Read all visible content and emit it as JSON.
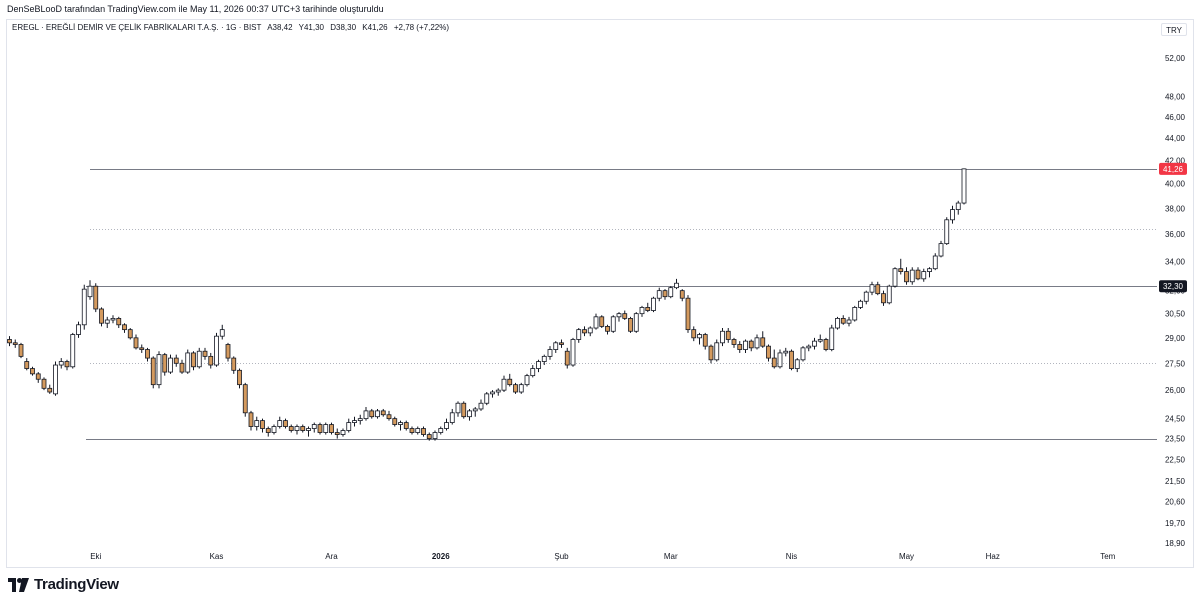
{
  "header": {
    "credit": "DenSeBLooD tarafından TradingView.com ile May 11, 2026 00:37 UTC+3 tarihinde oluşturuldu",
    "symbol": "EREGL · EREĞLİ DEMİR VE ÇELİK FABRİKALARI T.A.Ş. · 1G · BIST",
    "open": "A38,42",
    "high": "Y41,30",
    "low": "D38,30",
    "close": "K41,26",
    "change": "+2,78 (+7,22%)",
    "currency": "TRY"
  },
  "branding": {
    "name": "TradingView",
    "logo_icon": "tradingview-logo-icon"
  },
  "colors": {
    "up_body": "#ffffff",
    "down_body": "#d49a5e",
    "wick": "#131722",
    "badge": "#f23645",
    "badge_dark": "#131722"
  },
  "chart_data": {
    "type": "candlestick",
    "scale": "log",
    "y_ticks": [
      "52,00",
      "48,00",
      "46,00",
      "44,00",
      "42,00",
      "40,00",
      "38,00",
      "36,00",
      "34,00",
      "32,00",
      "30,50",
      "29,00",
      "27,50",
      "26,00",
      "24,50",
      "23,50",
      "22,50",
      "21,50",
      "20,60",
      "19,70",
      "18,90"
    ],
    "y_tick_values": [
      52,
      48,
      46,
      44,
      42,
      40,
      38,
      36,
      34,
      32,
      30.5,
      29,
      27.5,
      26,
      24.5,
      23.5,
      22.5,
      21.5,
      20.6,
      19.7,
      18.9
    ],
    "x_labels": [
      {
        "label": "Eki",
        "index": 15
      },
      {
        "label": "Kas",
        "index": 36
      },
      {
        "label": "Ara",
        "index": 56
      },
      {
        "label": "2026",
        "index": 75
      },
      {
        "label": "Şub",
        "index": 96
      },
      {
        "label": "Mar",
        "index": 115
      },
      {
        "label": "Nis",
        "index": 136
      },
      {
        "label": "May",
        "index": 156
      },
      {
        "label": "Haz",
        "index": 171
      },
      {
        "label": "Tem",
        "index": 191
      }
    ],
    "levels": [
      {
        "value": 41.26,
        "style": "solid",
        "label": "41,26",
        "badge": "red"
      },
      {
        "value": 36.4,
        "style": "dotted"
      },
      {
        "value": 32.3,
        "style": "solid",
        "label": "32,30",
        "badge": "dark"
      },
      {
        "value": 27.5,
        "style": "dotted"
      },
      {
        "value": 23.5,
        "style": "solid"
      }
    ],
    "candles": [
      [
        28.9,
        29.1,
        28.5,
        28.7
      ],
      [
        28.7,
        28.9,
        28.4,
        28.6
      ],
      [
        28.6,
        28.7,
        27.8,
        27.9
      ],
      [
        27.6,
        27.8,
        27.1,
        27.2
      ],
      [
        27.2,
        27.3,
        26.8,
        26.9
      ],
      [
        26.9,
        27.0,
        26.4,
        26.6
      ],
      [
        26.6,
        26.7,
        26.0,
        26.1
      ],
      [
        26.1,
        26.3,
        25.8,
        25.9
      ],
      [
        25.8,
        27.6,
        25.7,
        27.4
      ],
      [
        27.4,
        27.8,
        27.2,
        27.6
      ],
      [
        27.6,
        27.7,
        27.1,
        27.3
      ],
      [
        27.3,
        29.3,
        27.2,
        29.2
      ],
      [
        29.2,
        30.0,
        29.0,
        29.8
      ],
      [
        29.8,
        32.4,
        29.5,
        32.1
      ],
      [
        31.6,
        32.7,
        31.4,
        32.3
      ],
      [
        32.3,
        32.5,
        30.6,
        30.8
      ],
      [
        30.8,
        30.9,
        29.7,
        29.9
      ],
      [
        29.9,
        30.3,
        29.6,
        30.1
      ],
      [
        30.1,
        30.4,
        29.9,
        30.2
      ],
      [
        30.2,
        30.3,
        29.6,
        29.8
      ],
      [
        29.8,
        29.9,
        29.3,
        29.5
      ],
      [
        29.5,
        29.6,
        28.9,
        29.0
      ],
      [
        29.0,
        29.2,
        28.3,
        28.4
      ],
      [
        28.4,
        28.6,
        28.1,
        28.3
      ],
      [
        28.3,
        28.4,
        27.6,
        27.8
      ],
      [
        27.8,
        27.9,
        26.1,
        26.3
      ],
      [
        26.3,
        28.2,
        26.1,
        28.0
      ],
      [
        28.0,
        28.1,
        26.8,
        27.0
      ],
      [
        27.0,
        28.0,
        26.9,
        27.8
      ],
      [
        27.8,
        28.0,
        27.3,
        27.5
      ],
      [
        27.5,
        27.7,
        26.9,
        27.0
      ],
      [
        27.0,
        28.3,
        26.9,
        28.1
      ],
      [
        28.1,
        28.2,
        27.1,
        27.3
      ],
      [
        27.3,
        28.4,
        27.2,
        28.2
      ],
      [
        28.2,
        28.4,
        27.7,
        27.9
      ],
      [
        27.9,
        28.1,
        27.2,
        27.4
      ],
      [
        27.4,
        29.3,
        27.3,
        29.1
      ],
      [
        29.1,
        29.8,
        28.9,
        29.5
      ],
      [
        28.6,
        28.7,
        27.6,
        27.8
      ],
      [
        27.8,
        27.9,
        26.9,
        27.1
      ],
      [
        27.1,
        27.2,
        26.1,
        26.3
      ],
      [
        26.3,
        26.4,
        24.6,
        24.8
      ],
      [
        24.8,
        24.9,
        23.9,
        24.1
      ],
      [
        24.1,
        24.6,
        23.9,
        24.4
      ],
      [
        24.4,
        24.5,
        23.8,
        24.0
      ],
      [
        24.0,
        24.1,
        23.6,
        23.8
      ],
      [
        23.8,
        24.2,
        23.7,
        24.1
      ],
      [
        24.1,
        24.6,
        24.0,
        24.4
      ],
      [
        24.4,
        24.5,
        24.0,
        24.1
      ],
      [
        24.1,
        24.2,
        23.8,
        23.9
      ],
      [
        23.9,
        24.2,
        23.7,
        24.1
      ],
      [
        24.1,
        24.2,
        23.8,
        23.9
      ],
      [
        23.9,
        24.1,
        23.6,
        24.0
      ],
      [
        24.0,
        24.3,
        23.8,
        24.2
      ],
      [
        24.2,
        24.3,
        23.7,
        23.8
      ],
      [
        23.8,
        24.3,
        23.7,
        24.2
      ],
      [
        24.2,
        24.3,
        23.7,
        23.8
      ],
      [
        23.8,
        24.0,
        23.5,
        23.7
      ],
      [
        23.7,
        24.0,
        23.6,
        23.9
      ],
      [
        23.9,
        24.5,
        23.8,
        24.3
      ],
      [
        24.3,
        24.6,
        24.1,
        24.4
      ],
      [
        24.4,
        24.7,
        24.2,
        24.5
      ],
      [
        24.5,
        25.1,
        24.4,
        24.9
      ],
      [
        24.9,
        25.0,
        24.5,
        24.6
      ],
      [
        24.6,
        25.0,
        24.5,
        24.9
      ],
      [
        24.9,
        25.0,
        24.6,
        24.7
      ],
      [
        24.7,
        24.9,
        24.4,
        24.5
      ],
      [
        24.5,
        24.6,
        24.1,
        24.2
      ],
      [
        24.2,
        24.4,
        23.9,
        24.3
      ],
      [
        24.3,
        24.4,
        23.9,
        24.0
      ],
      [
        24.0,
        24.1,
        23.7,
        23.8
      ],
      [
        23.8,
        24.1,
        23.7,
        24.0
      ],
      [
        24.0,
        24.1,
        23.6,
        23.7
      ],
      [
        23.7,
        23.8,
        23.4,
        23.5
      ],
      [
        23.5,
        23.9,
        23.4,
        23.8
      ],
      [
        23.8,
        24.1,
        23.7,
        24.0
      ],
      [
        24.0,
        24.5,
        23.9,
        24.3
      ],
      [
        24.3,
        25.0,
        24.2,
        24.8
      ],
      [
        24.8,
        25.4,
        24.6,
        25.3
      ],
      [
        25.3,
        25.4,
        24.5,
        24.6
      ],
      [
        24.6,
        25.0,
        24.4,
        24.9
      ],
      [
        24.9,
        25.1,
        24.6,
        25.0
      ],
      [
        25.0,
        25.5,
        24.9,
        25.3
      ],
      [
        25.3,
        25.9,
        25.2,
        25.8
      ],
      [
        25.8,
        26.0,
        25.6,
        25.9
      ],
      [
        25.9,
        26.1,
        25.7,
        26.0
      ],
      [
        26.0,
        26.8,
        25.9,
        26.6
      ],
      [
        26.6,
        26.9,
        26.2,
        26.3
      ],
      [
        26.3,
        26.4,
        25.8,
        25.9
      ],
      [
        25.9,
        26.4,
        25.8,
        26.3
      ],
      [
        26.3,
        26.9,
        26.2,
        26.8
      ],
      [
        26.8,
        27.4,
        26.7,
        27.2
      ],
      [
        27.2,
        27.7,
        27.0,
        27.6
      ],
      [
        27.6,
        28.0,
        27.4,
        27.9
      ],
      [
        27.9,
        28.5,
        27.7,
        28.3
      ],
      [
        28.3,
        28.8,
        28.1,
        28.7
      ],
      [
        28.7,
        28.9,
        28.4,
        28.6
      ],
      [
        28.2,
        28.4,
        27.2,
        27.4
      ],
      [
        27.4,
        29.0,
        27.3,
        28.9
      ],
      [
        28.9,
        29.6,
        28.7,
        29.5
      ],
      [
        29.5,
        29.7,
        29.1,
        29.3
      ],
      [
        29.3,
        29.7,
        29.1,
        29.6
      ],
      [
        29.6,
        30.5,
        29.5,
        30.3
      ],
      [
        30.3,
        30.4,
        29.6,
        29.7
      ],
      [
        29.7,
        29.8,
        29.2,
        29.4
      ],
      [
        29.4,
        30.4,
        29.3,
        30.3
      ],
      [
        30.3,
        30.6,
        30.0,
        30.5
      ],
      [
        30.5,
        30.7,
        30.1,
        30.2
      ],
      [
        30.2,
        30.3,
        29.3,
        29.4
      ],
      [
        29.4,
        30.6,
        29.3,
        30.5
      ],
      [
        30.5,
        31.0,
        30.3,
        30.9
      ],
      [
        30.9,
        31.2,
        30.6,
        30.7
      ],
      [
        30.7,
        31.6,
        30.6,
        31.5
      ],
      [
        31.5,
        32.2,
        31.3,
        32.0
      ],
      [
        32.0,
        32.1,
        31.4,
        31.6
      ],
      [
        31.6,
        32.3,
        31.5,
        32.2
      ],
      [
        32.2,
        32.8,
        32.1,
        32.5
      ],
      [
        32.0,
        32.1,
        31.3,
        31.5
      ],
      [
        31.5,
        31.7,
        29.3,
        29.5
      ],
      [
        29.5,
        29.7,
        28.8,
        29.0
      ],
      [
        29.0,
        29.3,
        28.6,
        29.2
      ],
      [
        29.2,
        29.3,
        28.3,
        28.5
      ],
      [
        28.5,
        28.6,
        27.5,
        27.7
      ],
      [
        27.7,
        28.9,
        27.6,
        28.7
      ],
      [
        28.7,
        29.6,
        28.5,
        29.4
      ],
      [
        29.4,
        29.6,
        28.7,
        28.9
      ],
      [
        28.9,
        29.0,
        28.4,
        28.6
      ],
      [
        28.6,
        28.8,
        28.1,
        28.3
      ],
      [
        28.3,
        28.9,
        28.1,
        28.8
      ],
      [
        28.8,
        28.9,
        28.2,
        28.4
      ],
      [
        28.4,
        29.2,
        28.3,
        29.0
      ],
      [
        29.0,
        29.4,
        28.4,
        28.5
      ],
      [
        28.5,
        28.6,
        27.6,
        27.8
      ],
      [
        27.8,
        28.3,
        27.2,
        27.3
      ],
      [
        27.3,
        28.3,
        27.2,
        28.1
      ],
      [
        28.1,
        28.4,
        27.9,
        28.2
      ],
      [
        28.2,
        28.3,
        27.1,
        27.2
      ],
      [
        27.2,
        27.8,
        27.0,
        27.7
      ],
      [
        27.7,
        28.5,
        27.6,
        28.4
      ],
      [
        28.4,
        28.6,
        28.2,
        28.5
      ],
      [
        28.5,
        29.0,
        28.3,
        28.8
      ],
      [
        28.8,
        29.2,
        28.7,
        28.9
      ],
      [
        28.9,
        29.0,
        28.2,
        28.3
      ],
      [
        28.3,
        29.8,
        28.2,
        29.6
      ],
      [
        29.6,
        30.3,
        29.5,
        30.2
      ],
      [
        30.2,
        30.4,
        29.8,
        29.9
      ],
      [
        29.9,
        30.3,
        29.7,
        30.1
      ],
      [
        30.1,
        31.0,
        30.0,
        30.9
      ],
      [
        30.9,
        31.4,
        30.8,
        31.3
      ],
      [
        31.3,
        32.0,
        31.1,
        31.9
      ],
      [
        31.9,
        32.6,
        31.7,
        32.4
      ],
      [
        32.4,
        32.6,
        31.7,
        31.8
      ],
      [
        31.8,
        32.0,
        31.0,
        31.2
      ],
      [
        31.2,
        32.4,
        31.1,
        32.3
      ],
      [
        32.3,
        33.6,
        32.2,
        33.5
      ],
      [
        33.5,
        34.2,
        33.1,
        33.3
      ],
      [
        33.3,
        33.6,
        32.4,
        32.6
      ],
      [
        32.6,
        33.6,
        32.4,
        33.4
      ],
      [
        33.4,
        33.6,
        32.7,
        32.8
      ],
      [
        32.8,
        33.5,
        32.6,
        33.3
      ],
      [
        33.3,
        33.6,
        32.9,
        33.5
      ],
      [
        33.5,
        34.6,
        33.4,
        34.4
      ],
      [
        34.4,
        35.5,
        34.3,
        35.3
      ],
      [
        35.3,
        37.3,
        35.2,
        37.1
      ],
      [
        37.1,
        38.2,
        36.8,
        37.9
      ],
      [
        37.9,
        38.6,
        37.5,
        38.42
      ],
      [
        38.42,
        41.3,
        38.3,
        41.26
      ]
    ]
  }
}
